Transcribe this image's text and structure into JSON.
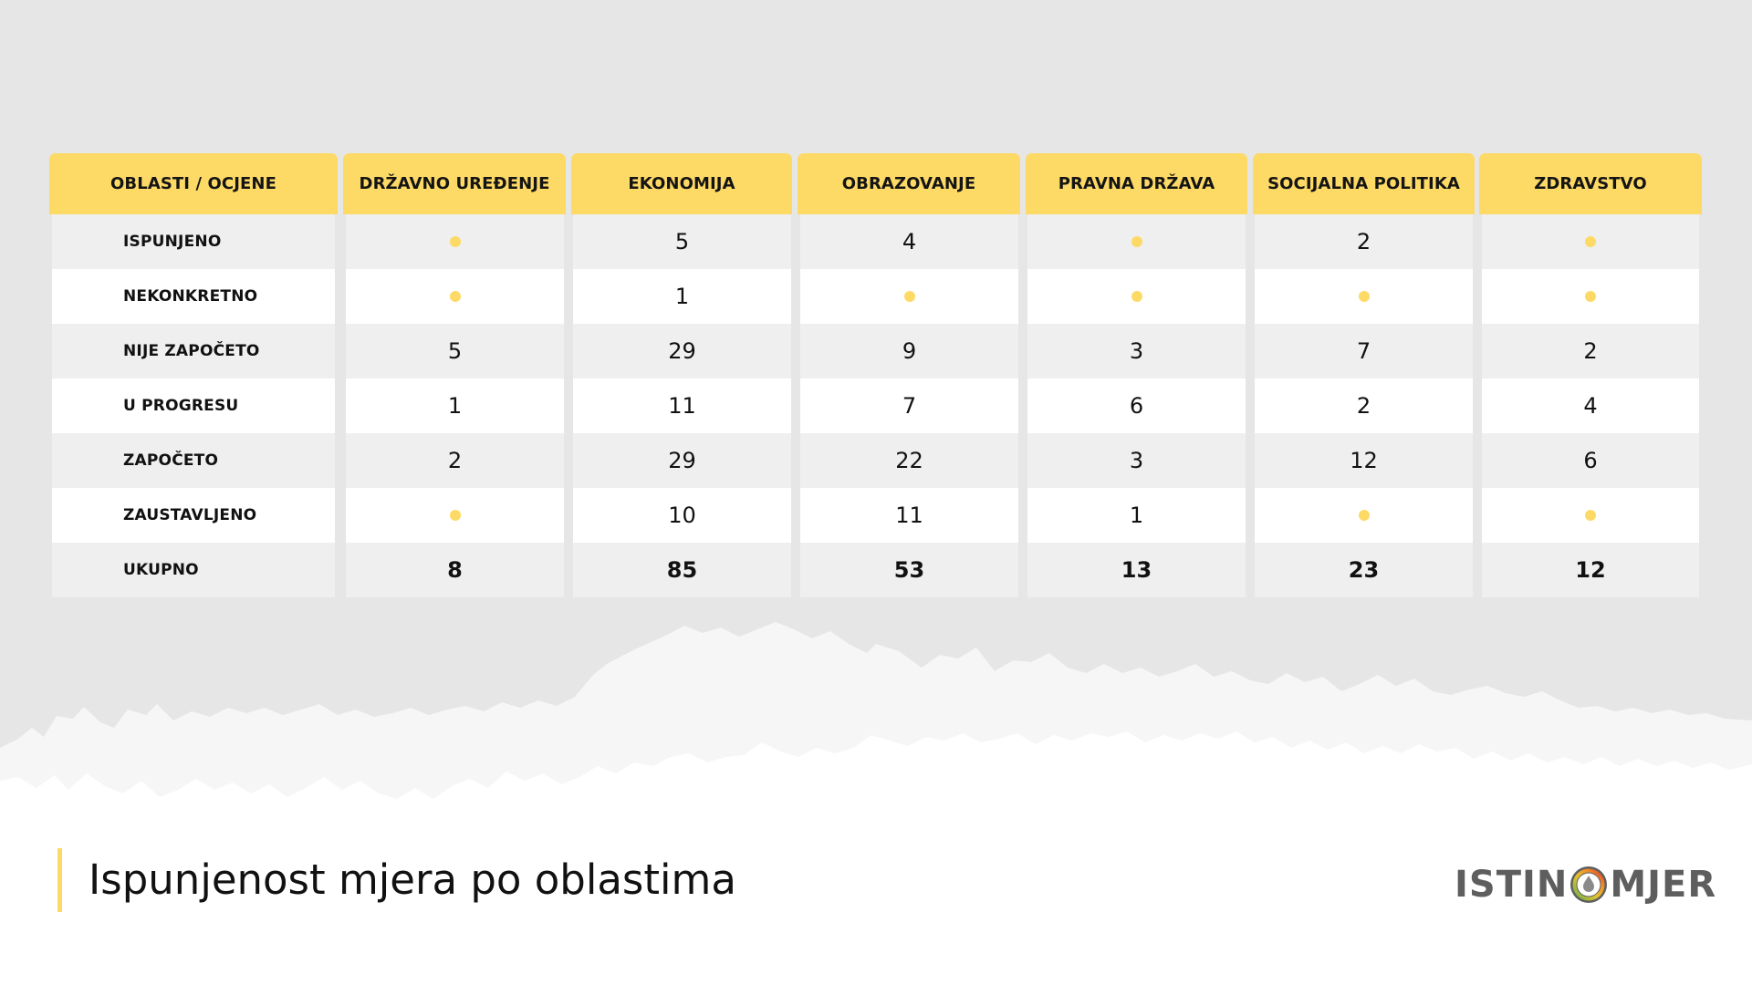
{
  "footer": {
    "title": "Ispunjenost mjera po oblastima",
    "logo": {
      "left_text": "ISTIN",
      "right_text": "MJER",
      "dial_icon": "dial-droplet-icon"
    }
  },
  "colors": {
    "header_yellow": "#fdd966",
    "dot_yellow": "#fdd966",
    "row_gray": "#efefef",
    "row_white": "#ffffff",
    "background": "#e6e6e6",
    "logo_gray": "#5e5e5e"
  },
  "table": {
    "corner_header": "OBLASTI / OCJENE",
    "columns": [
      "DRŽAVNO UREĐENJE",
      "EKONOMIJA",
      "OBRAZOVANJE",
      "PRAVNA DRŽAVA",
      "SOCIJALNA POLITIKA",
      "ZDRAVSTVO"
    ],
    "rows": [
      {
        "label": "ISPUNJENO",
        "values": [
          "•",
          "5",
          "4",
          "•",
          "2",
          "•"
        ]
      },
      {
        "label": "NEKONKRETNO",
        "values": [
          "•",
          "1",
          "•",
          "•",
          "•",
          "•"
        ]
      },
      {
        "label": "NIJE ZAPOČETO",
        "values": [
          "5",
          "29",
          "9",
          "3",
          "7",
          "2"
        ]
      },
      {
        "label": "U PROGRESU",
        "values": [
          "1",
          "11",
          "7",
          "6",
          "2",
          "4"
        ]
      },
      {
        "label": "ZAPOČETO",
        "values": [
          "2",
          "29",
          "22",
          "3",
          "12",
          "6"
        ]
      },
      {
        "label": "ZAUSTAVLJENO",
        "values": [
          "•",
          "10",
          "11",
          "1",
          "•",
          "•"
        ]
      },
      {
        "label": "UKUPNO",
        "values": [
          "8",
          "85",
          "53",
          "13",
          "23",
          "12"
        ]
      }
    ],
    "empty_marker": "yellow-dot (zero / no measures)"
  },
  "chart_data": {
    "type": "table",
    "title": "Ispunjenost mjera po oblastima",
    "row_header": "OBLASTI / OCJENE",
    "categories": [
      "DRŽAVNO UREĐENJE",
      "EKONOMIJA",
      "OBRAZOVANJE",
      "PRAVNA DRŽAVA",
      "SOCIJALNA POLITIKA",
      "ZDRAVSTVO"
    ],
    "series": [
      {
        "name": "ISPUNJENO",
        "values": [
          0,
          5,
          4,
          0,
          2,
          0
        ]
      },
      {
        "name": "NEKONKRETNO",
        "values": [
          0,
          1,
          0,
          0,
          0,
          0
        ]
      },
      {
        "name": "NIJE ZAPOČETO",
        "values": [
          5,
          29,
          9,
          3,
          7,
          2
        ]
      },
      {
        "name": "U PROGRESU",
        "values": [
          1,
          11,
          7,
          6,
          2,
          4
        ]
      },
      {
        "name": "ZAPOČETO",
        "values": [
          2,
          29,
          22,
          3,
          12,
          6
        ]
      },
      {
        "name": "ZAUSTAVLJENO",
        "values": [
          0,
          10,
          11,
          1,
          0,
          0
        ]
      },
      {
        "name": "UKUPNO",
        "values": [
          8,
          85,
          53,
          13,
          23,
          12
        ]
      }
    ],
    "notes": "Yellow dot cells represent zero / no entries."
  }
}
